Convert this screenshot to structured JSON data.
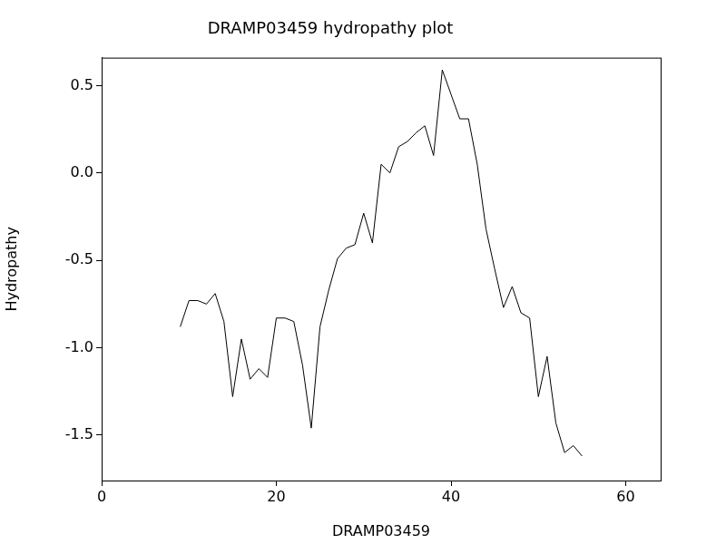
{
  "chart_data": {
    "type": "line",
    "title": "DRAMP03459 hydropathy plot",
    "x_label": "DRAMP03459",
    "y_label": "Hydropathy",
    "x": [
      9,
      10,
      11,
      12,
      13,
      14,
      15,
      16,
      17,
      18,
      19,
      20,
      21,
      22,
      23,
      24,
      25,
      26,
      27,
      28,
      29,
      30,
      31,
      32,
      33,
      34,
      35,
      36,
      37,
      38,
      39,
      40,
      41,
      42,
      43,
      44,
      45,
      46,
      47,
      48,
      49,
      50,
      51,
      52,
      53,
      54,
      55
    ],
    "values": [
      -0.88,
      -0.73,
      -0.73,
      -0.75,
      -0.69,
      -0.85,
      -1.28,
      -0.95,
      -1.18,
      -1.12,
      -1.17,
      -0.83,
      -0.83,
      -0.85,
      -1.1,
      -1.46,
      -0.88,
      -0.67,
      -0.49,
      -0.43,
      -0.41,
      -0.23,
      -0.4,
      0.05,
      0.0,
      0.15,
      0.18,
      0.23,
      0.27,
      0.1,
      0.59,
      0.45,
      0.31,
      0.31,
      0.05,
      -0.32,
      -0.55,
      -0.77,
      -0.65,
      -0.8,
      -0.83,
      -1.28,
      -1.05,
      -1.43,
      -1.6,
      -1.56,
      -1.62
    ],
    "color": "#000000",
    "xlim": [
      0,
      64
    ],
    "xticks": [
      0,
      20,
      40,
      60
    ],
    "ylim": [
      -1.76,
      0.66
    ],
    "yticks": [
      {
        "value": -1.5,
        "label": "-1.5"
      },
      {
        "value": -1,
        "label": "-1.0"
      },
      {
        "value": -0.5,
        "label": "-0.5"
      },
      {
        "value": 0,
        "label": "0.0"
      },
      {
        "value": 0.5,
        "label": "0.5"
      }
    ],
    "grid": false
  }
}
